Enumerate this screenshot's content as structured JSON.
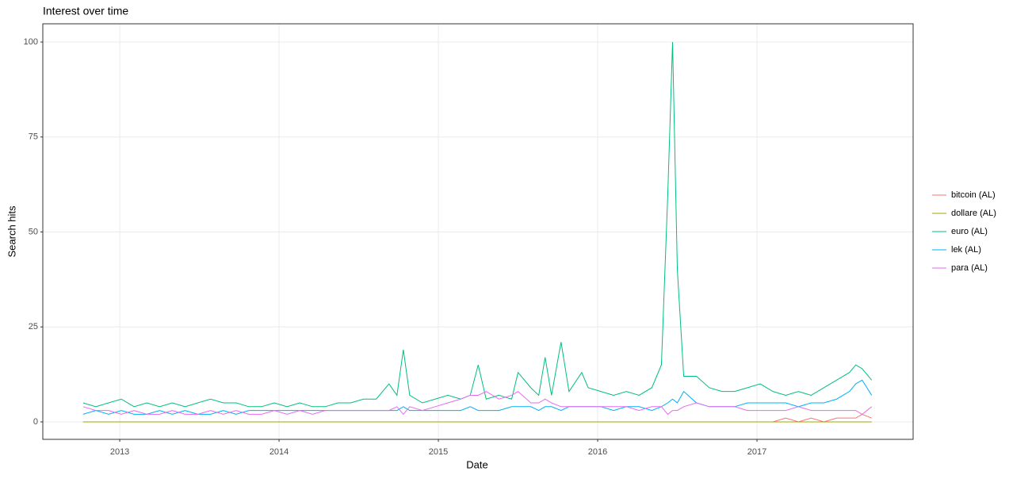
{
  "chart_data": {
    "type": "line",
    "title": "Interest over time",
    "x_label": "Date",
    "y_label": "Search hits",
    "x": [
      2012.77,
      2012.85,
      2012.93,
      2013.01,
      2013.09,
      2013.17,
      2013.25,
      2013.33,
      2013.41,
      2013.49,
      2013.57,
      2013.65,
      2013.73,
      2013.81,
      2013.89,
      2013.97,
      2014.05,
      2014.13,
      2014.21,
      2014.29,
      2014.37,
      2014.45,
      2014.53,
      2014.61,
      2014.69,
      2014.74,
      2014.78,
      2014.82,
      2014.9,
      2014.98,
      2015.06,
      2015.14,
      2015.2,
      2015.25,
      2015.3,
      2015.38,
      2015.46,
      2015.5,
      2015.58,
      2015.63,
      2015.67,
      2015.71,
      2015.77,
      2015.82,
      2015.9,
      2015.94,
      2016.02,
      2016.1,
      2016.18,
      2016.26,
      2016.34,
      2016.4,
      2016.44,
      2016.47,
      2016.5,
      2016.54,
      2016.62,
      2016.7,
      2016.78,
      2016.86,
      2016.94,
      2017.02,
      2017.1,
      2017.18,
      2017.26,
      2017.34,
      2017.42,
      2017.5,
      2017.58,
      2017.62,
      2017.66,
      2017.72
    ],
    "series": [
      {
        "name": "bitcoin (AL)",
        "color": "#F8766D",
        "values": [
          0,
          0,
          0,
          0,
          0,
          0,
          0,
          0,
          0,
          0,
          0,
          0,
          0,
          0,
          0,
          0,
          0,
          0,
          0,
          0,
          0,
          0,
          0,
          0,
          0,
          0,
          0,
          0,
          0,
          0,
          0,
          0,
          0,
          0,
          0,
          0,
          0,
          0,
          0,
          0,
          0,
          0,
          0,
          0,
          0,
          0,
          0,
          0,
          0,
          0,
          0,
          0,
          0,
          0,
          0,
          0,
          0,
          0,
          0,
          0,
          0,
          0,
          0,
          1,
          0,
          1,
          0,
          1,
          1,
          1,
          2,
          1
        ]
      },
      {
        "name": "dollare (AL)",
        "color": "#A3A500",
        "values": [
          0,
          0,
          0,
          0,
          0,
          0,
          0,
          0,
          0,
          0,
          0,
          0,
          0,
          0,
          0,
          0,
          0,
          0,
          0,
          0,
          0,
          0,
          0,
          0,
          0,
          0,
          0,
          0,
          0,
          0,
          0,
          0,
          0,
          0,
          0,
          0,
          0,
          0,
          0,
          0,
          0,
          0,
          0,
          0,
          0,
          0,
          0,
          0,
          0,
          0,
          0,
          0,
          0,
          0,
          0,
          0,
          0,
          0,
          0,
          0,
          0,
          0,
          0,
          0,
          0,
          0,
          0,
          0,
          0,
          0,
          0,
          0
        ]
      },
      {
        "name": "euro (AL)",
        "color": "#00BF7D",
        "values": [
          5,
          4,
          5,
          6,
          4,
          5,
          4,
          5,
          4,
          5,
          6,
          5,
          5,
          4,
          4,
          5,
          4,
          5,
          4,
          4,
          5,
          5,
          6,
          6,
          10,
          7,
          19,
          7,
          5,
          6,
          7,
          6,
          7,
          15,
          6,
          7,
          6,
          13,
          9,
          7,
          17,
          7,
          21,
          8,
          13,
          9,
          8,
          7,
          8,
          7,
          9,
          15,
          60,
          100,
          40,
          12,
          12,
          9,
          8,
          8,
          9,
          10,
          8,
          7,
          8,
          7,
          9,
          11,
          13,
          15,
          14,
          11
        ]
      },
      {
        "name": "lek (AL)",
        "color": "#00B0F6",
        "values": [
          2,
          3,
          2,
          3,
          2,
          2,
          3,
          2,
          3,
          2,
          2,
          3,
          2,
          3,
          3,
          3,
          3,
          3,
          3,
          3,
          3,
          3,
          3,
          3,
          3,
          3,
          4,
          3,
          3,
          3,
          3,
          3,
          4,
          3,
          3,
          3,
          4,
          4,
          4,
          3,
          4,
          4,
          3,
          4,
          4,
          4,
          4,
          3,
          4,
          4,
          3,
          4,
          5,
          6,
          5,
          8,
          5,
          4,
          4,
          4,
          5,
          5,
          5,
          5,
          4,
          5,
          5,
          6,
          8,
          10,
          11,
          7
        ]
      },
      {
        "name": "para (AL)",
        "color": "#E76BF3",
        "values": [
          4,
          3,
          3,
          2,
          3,
          2,
          2,
          3,
          2,
          2,
          3,
          2,
          3,
          2,
          2,
          3,
          2,
          3,
          2,
          3,
          3,
          3,
          3,
          3,
          3,
          4,
          2,
          4,
          3,
          4,
          5,
          6,
          7,
          7,
          8,
          6,
          7,
          8,
          5,
          5,
          6,
          5,
          4,
          4,
          4,
          4,
          4,
          4,
          4,
          3,
          4,
          4,
          2,
          3,
          3,
          4,
          5,
          4,
          4,
          4,
          3,
          3,
          3,
          3,
          4,
          3,
          3,
          3,
          3,
          3,
          2,
          4
        ]
      }
    ],
    "xlim": [
      2012.517,
      2017.98
    ],
    "xticks": [
      2013,
      2014,
      2015,
      2016,
      2017
    ],
    "ylim": [
      -4.6,
      104.8
    ],
    "yticks": [
      0,
      25,
      50,
      75,
      100
    ],
    "grid": true,
    "legend": "right"
  }
}
